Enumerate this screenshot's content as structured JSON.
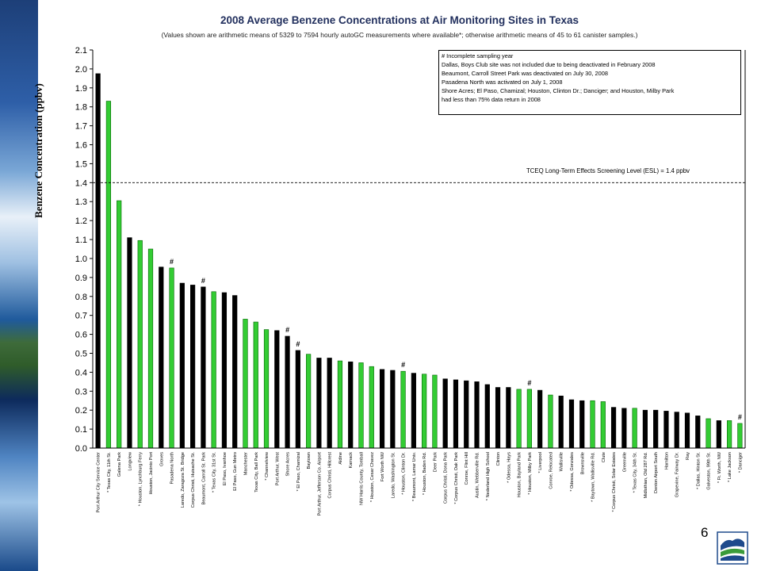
{
  "chart_data": {
    "type": "bar",
    "title": "2008 Average Benzene Concentrations at Air Monitoring Sites in Texas",
    "subtitle": "(Values shown are arithmetic means of 5329 to 7594 hourly autoGC measurements where available*; otherwise arithmetic means of 45 to 61 canister samples.)",
    "xlabel": "",
    "ylabel": "Benzene Concentration (ppbv)",
    "ylim": [
      0,
      2.1
    ],
    "yticks": [
      "0.0",
      "0.1",
      "0.2",
      "0.3",
      "0.4",
      "0.5",
      "0.6",
      "0.7",
      "0.8",
      "0.9",
      "1.0",
      "1.1",
      "1.2",
      "1.3",
      "1.4",
      "1.5",
      "1.6",
      "1.7",
      "1.8",
      "1.9",
      "2.0",
      "2.1"
    ],
    "reference_line": {
      "value": 1.4,
      "label": "TCEQ Long-Term Effects Screening Level (ESL) = 1.4 ppbv"
    },
    "legend_notes": [
      "# Incomplete sampling year",
      "Dallas, Boys Club site was not included due to being deactivated in February 2008",
      "Beaumont, Carroll Street Park was deactivated on July 30, 2008",
      "Pasadena North was activated on July 1, 2008",
      "Shore Acres; El Paso, Chamizal; Houston, Clinton Dr.; Danciger; and Houston, Milby Park",
      "had less than 75% data return in 2008"
    ],
    "colors": {
      "black_bar": "#000000",
      "green_bar": "#33cc33",
      "green_bar_edge": "#006600"
    },
    "categories": [
      "Port Arthur City Service Center",
      "* Texas City, 11th St.",
      "Galena Park",
      "Longview",
      "* Houston, Lynchburg Ferry",
      "Houston, Jacinto Port",
      "Groves",
      "Pasadena North",
      "Laredo, Zaragoza St. Bridge",
      "Corpus Christi, Huisache St.",
      "Beaumont, Carroll St. Park",
      "* Texas City, 31st St.",
      "El Paso, Ivanhoe",
      "El Paso, Gun Metro",
      "Manchester",
      "Texas City, Ball Park",
      "* Channelview",
      "Port Arthur, West",
      "Shore Acres",
      "* El Paso, Chamizal",
      "Baytown",
      "Port Arthur, Jefferson Co. Airport",
      "Corpus Christi, Hillcrest",
      "Aldine",
      "Karnack",
      "NW Harris County, Tomball",
      "* Houston, Cesar Chavez",
      "Fort Worth NW",
      "Laredo, Washington St.",
      "* Houston, Clinton Dr.",
      "* Beaumont, Lamar Univ.",
      "* Houston, Baden Rd.",
      "Deer Park",
      "Corpus Christi, Dona Park",
      "* Corpus Christi, Oak Park",
      "Conroe, Flint Hill",
      "Austin, Webberville Rd.",
      "* Nederland High School",
      "Clinton",
      "* Odessa, Hays",
      "Houston, Bayland Park",
      "* Houston, Milby Park",
      "* Liverpool",
      "Conroe, Relocated",
      "Wallisville",
      "* Odessa, Gonzales",
      "Brownsville",
      "* Baytown, Wallisville Rd.",
      "Clute",
      "* Corpus Christi, Solar Estates",
      "Greenville",
      "* Texas City, 34th St.",
      "Midlothian, Old 287 Rd.",
      "Denton Airport South",
      "Hamilton",
      "Grapevine, Fairway Dr.",
      "Ray",
      "* Dallas, Hinton St.",
      "Galveston, 99th St.",
      "* Ft. Worth, NW",
      "* Lake Jackson",
      "* Danciger"
    ],
    "series": [
      {
        "name": "",
        "values": [
          1.975,
          1.83,
          1.305,
          1.11,
          1.095,
          1.05,
          0.955,
          0.95,
          0.87,
          0.86,
          0.85,
          0.825,
          0.82,
          0.805,
          0.68,
          0.665,
          0.625,
          0.62,
          0.59,
          0.515,
          0.495,
          0.475,
          0.475,
          0.46,
          0.455,
          0.45,
          0.43,
          0.415,
          0.41,
          0.405,
          0.395,
          0.39,
          0.385,
          0.365,
          0.36,
          0.355,
          0.35,
          0.335,
          0.32,
          0.32,
          0.31,
          0.31,
          0.305,
          0.28,
          0.275,
          0.255,
          0.25,
          0.25,
          0.245,
          0.215,
          0.21,
          0.21,
          0.2,
          0.2,
          0.195,
          0.19,
          0.185,
          0.17,
          0.155,
          0.145,
          0.145,
          0.13
        ],
        "bar_color": [
          "black",
          "green",
          "green",
          "black",
          "green",
          "green",
          "black",
          "green",
          "black",
          "black",
          "black",
          "green",
          "black",
          "black",
          "green",
          "green",
          "green",
          "black",
          "black",
          "black",
          "green",
          "black",
          "black",
          "green",
          "black",
          "green",
          "green",
          "black",
          "black",
          "green",
          "black",
          "green",
          "green",
          "black",
          "black",
          "black",
          "black",
          "black",
          "black",
          "black",
          "green",
          "green",
          "black",
          "green",
          "black",
          "black",
          "black",
          "green",
          "green",
          "black",
          "black",
          "green",
          "black",
          "black",
          "black",
          "black",
          "black",
          "black",
          "green",
          "black",
          "green",
          "green"
        ],
        "incomplete_year": [
          false,
          false,
          false,
          false,
          false,
          false,
          false,
          true,
          false,
          false,
          true,
          false,
          false,
          false,
          false,
          false,
          false,
          false,
          true,
          true,
          false,
          false,
          false,
          false,
          false,
          false,
          false,
          false,
          false,
          true,
          false,
          false,
          false,
          false,
          false,
          false,
          false,
          false,
          false,
          false,
          false,
          true,
          false,
          false,
          false,
          false,
          false,
          false,
          false,
          false,
          false,
          false,
          false,
          false,
          false,
          false,
          false,
          false,
          false,
          false,
          false,
          true
        ]
      }
    ],
    "grid": false,
    "legend_position": "top-right",
    "hash_marker": "#"
  },
  "footer": {
    "page_number": "6"
  },
  "side_panel": {
    "image": "lake-landscape"
  },
  "logo": {
    "icon": "tceq-logo-icon"
  }
}
